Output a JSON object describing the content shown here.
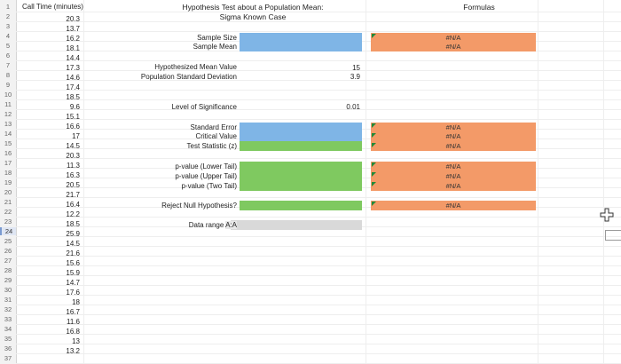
{
  "header": {
    "call_time": "Call Time (minutes)",
    "title_line1": "Hypothesis Test about a Population Mean:",
    "title_line2": "Sigma Known Case",
    "formulas": "Formulas"
  },
  "rows": [
    "1",
    "2",
    "3",
    "4",
    "5",
    "6",
    "7",
    "8",
    "9",
    "10",
    "11",
    "12",
    "13",
    "14",
    "15",
    "16",
    "17",
    "18",
    "19",
    "20",
    "21",
    "22",
    "23",
    "24",
    "25",
    "26",
    "27",
    "28",
    "29",
    "30",
    "31",
    "32",
    "33",
    "34",
    "35",
    "36",
    "37"
  ],
  "call_times": [
    "20.3",
    "13.7",
    "16.2",
    "18.1",
    "14.4",
    "17.3",
    "14.6",
    "17.4",
    "18.5",
    "9.6",
    "15.1",
    "16.6",
    "17",
    "14.5",
    "20.3",
    "11.3",
    "16.3",
    "20.5",
    "21.7",
    "16.4",
    "12.2",
    "18.5",
    "25.9",
    "14.5",
    "21.6",
    "15.6",
    "15.9",
    "14.7",
    "17.6",
    "18",
    "16.7",
    "11.6",
    "16.8",
    "13",
    "13.2"
  ],
  "labels": {
    "sample_size": "Sample Size",
    "sample_mean": "Sample Mean",
    "hyp_mean": "Hypothesized Mean Value",
    "pop_sd": "Population Standard Deviation",
    "significance": "Level of Significance",
    "std_error": "Standard Error",
    "critical_value": "Critical Value",
    "test_stat": "Test Statistic (z)",
    "p_lower": "p-value (Lower Tail)",
    "p_upper": "p-value (Upper Tail)",
    "p_two": "p-value (Two Tail)",
    "reject": "Reject Null Hypothesis?",
    "data_range": "Data range",
    "data_range_value": "A:A"
  },
  "values": {
    "hyp_mean": "15",
    "pop_sd": "3.9",
    "significance": "0.01"
  },
  "formulas": {
    "sample_size": "#N/A",
    "sample_mean": "#N/A",
    "std_error": "#N/A",
    "critical_value": "#N/A",
    "test_stat": "#N/A",
    "p_lower": "#N/A",
    "p_upper": "#N/A",
    "p_two": "#N/A",
    "reject": "#N/A"
  },
  "icons": {
    "cursor": "plus-cursor-icon"
  }
}
